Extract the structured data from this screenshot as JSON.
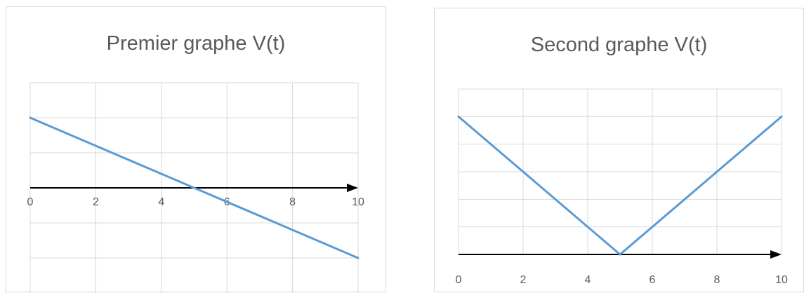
{
  "chart_data": [
    {
      "type": "line",
      "title": "Premier graphe V(t)",
      "xlabel": "",
      "ylabel": "",
      "xlim": [
        0,
        10
      ],
      "ylim": [
        -2,
        2
      ],
      "x_ticks": [
        0,
        2,
        4,
        6,
        8,
        10
      ],
      "x_tick_labels": [
        "0",
        "2",
        "4",
        "6",
        "8",
        "10"
      ],
      "y_gridlines": [
        -2,
        -1,
        0,
        1,
        2,
        3
      ],
      "grid": true,
      "axis_at_y": 0,
      "series": [
        {
          "x": [
            0,
            10
          ],
          "y": [
            2,
            -2
          ],
          "color": "#5b9bd5"
        }
      ]
    },
    {
      "type": "line",
      "title": "Second graphe V(t)",
      "xlabel": "",
      "ylabel": "",
      "xlim": [
        0,
        10
      ],
      "ylim": [
        0,
        5
      ],
      "x_ticks": [
        0,
        2,
        4,
        6,
        8,
        10
      ],
      "x_tick_labels": [
        "0",
        "2",
        "4",
        "6",
        "8",
        "10"
      ],
      "y_gridlines": [
        0,
        1,
        2,
        3,
        4,
        5,
        6
      ],
      "grid": true,
      "axis_at_y": 0,
      "series": [
        {
          "x": [
            0,
            5,
            10
          ],
          "y": [
            5,
            0,
            5
          ],
          "color": "#5b9bd5"
        }
      ]
    }
  ]
}
